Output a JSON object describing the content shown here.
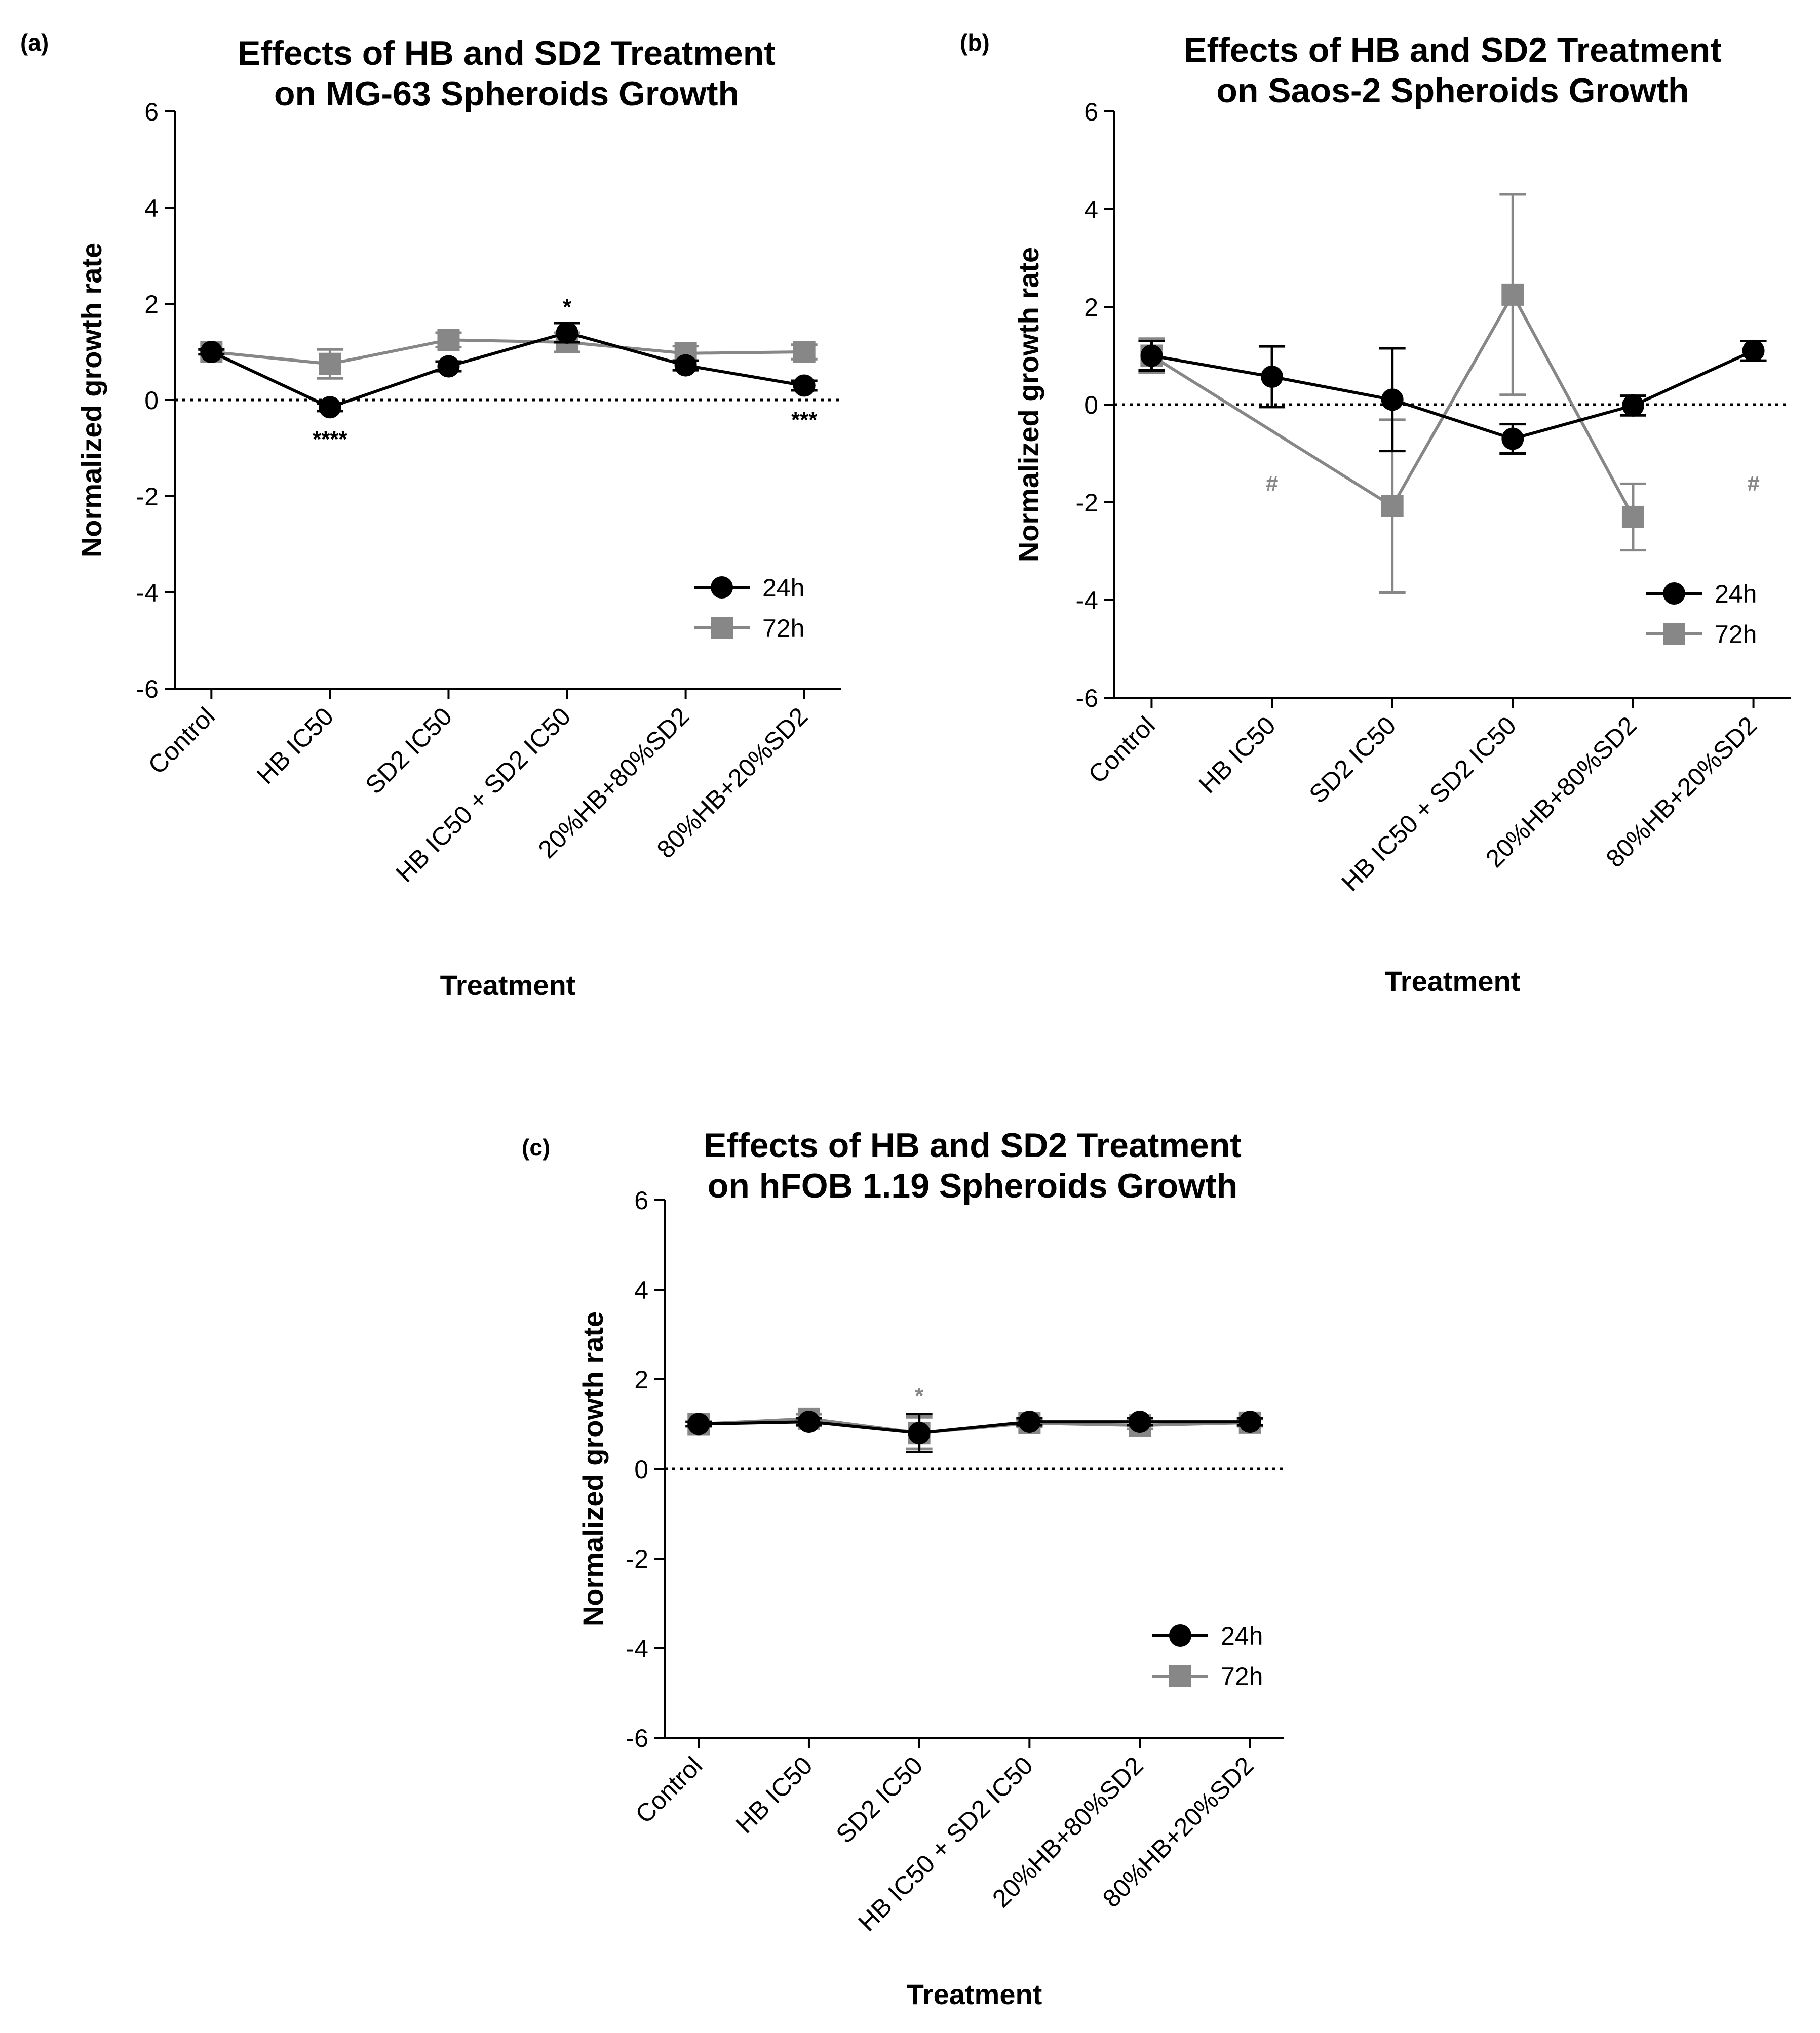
{
  "colors": {
    "h24": "#000000",
    "h72": "#878787"
  },
  "chart_data": [
    {
      "panel": "(a)",
      "type": "line",
      "title": "Effects of HB and SD2 Treatment",
      "subtitle": "on MG-63 Spheroids Growth",
      "xlabel": "Treatment",
      "ylabel": "Normalized growth rate",
      "ylim": [
        -6,
        6
      ],
      "yticks": [
        "6",
        "4",
        "2",
        "0",
        "-2",
        "-4",
        "-6"
      ],
      "categories": [
        "Control",
        "HB IC50",
        "SD2 IC50",
        "HB IC50 + SD2 IC50",
        "20%HB+80%SD2",
        "80%HB+20%SD2"
      ],
      "legend_position": "right",
      "series": [
        {
          "name": "24h",
          "marker": "circle",
          "values": [
            1.0,
            -0.15,
            0.7,
            1.4,
            0.72,
            0.3
          ],
          "errors": [
            0.05,
            0.08,
            0.1,
            0.2,
            0.1,
            0.1
          ]
        },
        {
          "name": "72h",
          "marker": "square",
          "values": [
            1.0,
            0.75,
            1.25,
            1.2,
            0.97,
            1.0
          ],
          "errors": [
            0.05,
            0.3,
            0.15,
            0.2,
            0.15,
            0.15
          ]
        }
      ],
      "annotations": [
        {
          "category": "HB IC50",
          "text": "****",
          "series": "24h",
          "value": -0.8
        },
        {
          "category": "HB IC50 + SD2 IC50",
          "text": "*",
          "series": "24h",
          "value": 1.95
        },
        {
          "category": "80%HB+20%SD2",
          "text": "***",
          "series": "24h",
          "value": -0.4
        }
      ]
    },
    {
      "panel": "(b)",
      "type": "line",
      "title": "Effects of HB and SD2 Treatment",
      "subtitle": "on Saos-2 Spheroids Growth",
      "xlabel": "Treatment",
      "ylabel": "Normalized growth rate",
      "ylim": [
        -6,
        6
      ],
      "yticks": [
        "6",
        "4",
        "2",
        "0",
        "-2",
        "-4",
        "-6"
      ],
      "categories": [
        "Control",
        "HB IC50",
        "SD2 IC50",
        "HB IC50 + SD2 IC50",
        "20%HB+80%SD2",
        "80%HB+20%SD2"
      ],
      "legend_position": "right",
      "series": [
        {
          "name": "24h",
          "marker": "circle",
          "values": [
            1.0,
            0.57,
            0.1,
            -0.7,
            -0.02,
            1.1
          ],
          "errors": [
            0.3,
            0.62,
            1.05,
            0.3,
            0.2,
            0.2
          ]
        },
        {
          "name": "72h",
          "marker": "square",
          "values": [
            1.0,
            null,
            -2.08,
            2.25,
            -2.3,
            null
          ],
          "errors": [
            0.35,
            null,
            1.77,
            2.05,
            0.68,
            null
          ]
        }
      ],
      "annotations": [
        {
          "category": "HB IC50",
          "text": "#",
          "series": "72h",
          "value": -1.6
        },
        {
          "category": "80%HB+20%SD2",
          "text": "#",
          "series": "72h",
          "value": -1.6
        }
      ]
    },
    {
      "panel": "(c)",
      "type": "line",
      "title": "Effects of HB and SD2 Treatment",
      "subtitle": "on hFOB 1.19 Spheroids Growth",
      "xlabel": "Treatment",
      "ylabel": "Normalized growth rate",
      "ylim": [
        -6,
        6
      ],
      "yticks": [
        "6",
        "4",
        "2",
        "0",
        "-2",
        "-4",
        "-6"
      ],
      "categories": [
        "Control",
        "HB IC50",
        "SD2 IC50",
        "HB IC50 + SD2 IC50",
        "20%HB+80%SD2",
        "80%HB+20%SD2"
      ],
      "legend_position": "right",
      "series": [
        {
          "name": "24h",
          "marker": "circle",
          "values": [
            1.0,
            1.05,
            0.8,
            1.05,
            1.05,
            1.05
          ],
          "errors": [
            0.05,
            0.08,
            0.42,
            0.08,
            0.08,
            0.08
          ]
        },
        {
          "name": "72h",
          "marker": "square",
          "values": [
            1.0,
            1.12,
            0.8,
            1.02,
            0.97,
            1.03
          ],
          "errors": [
            0.05,
            0.1,
            0.35,
            0.08,
            0.08,
            0.08
          ]
        }
      ],
      "annotations": [
        {
          "category": "SD2 IC50",
          "text": "*",
          "series": "72h",
          "value": 1.65
        }
      ]
    }
  ]
}
